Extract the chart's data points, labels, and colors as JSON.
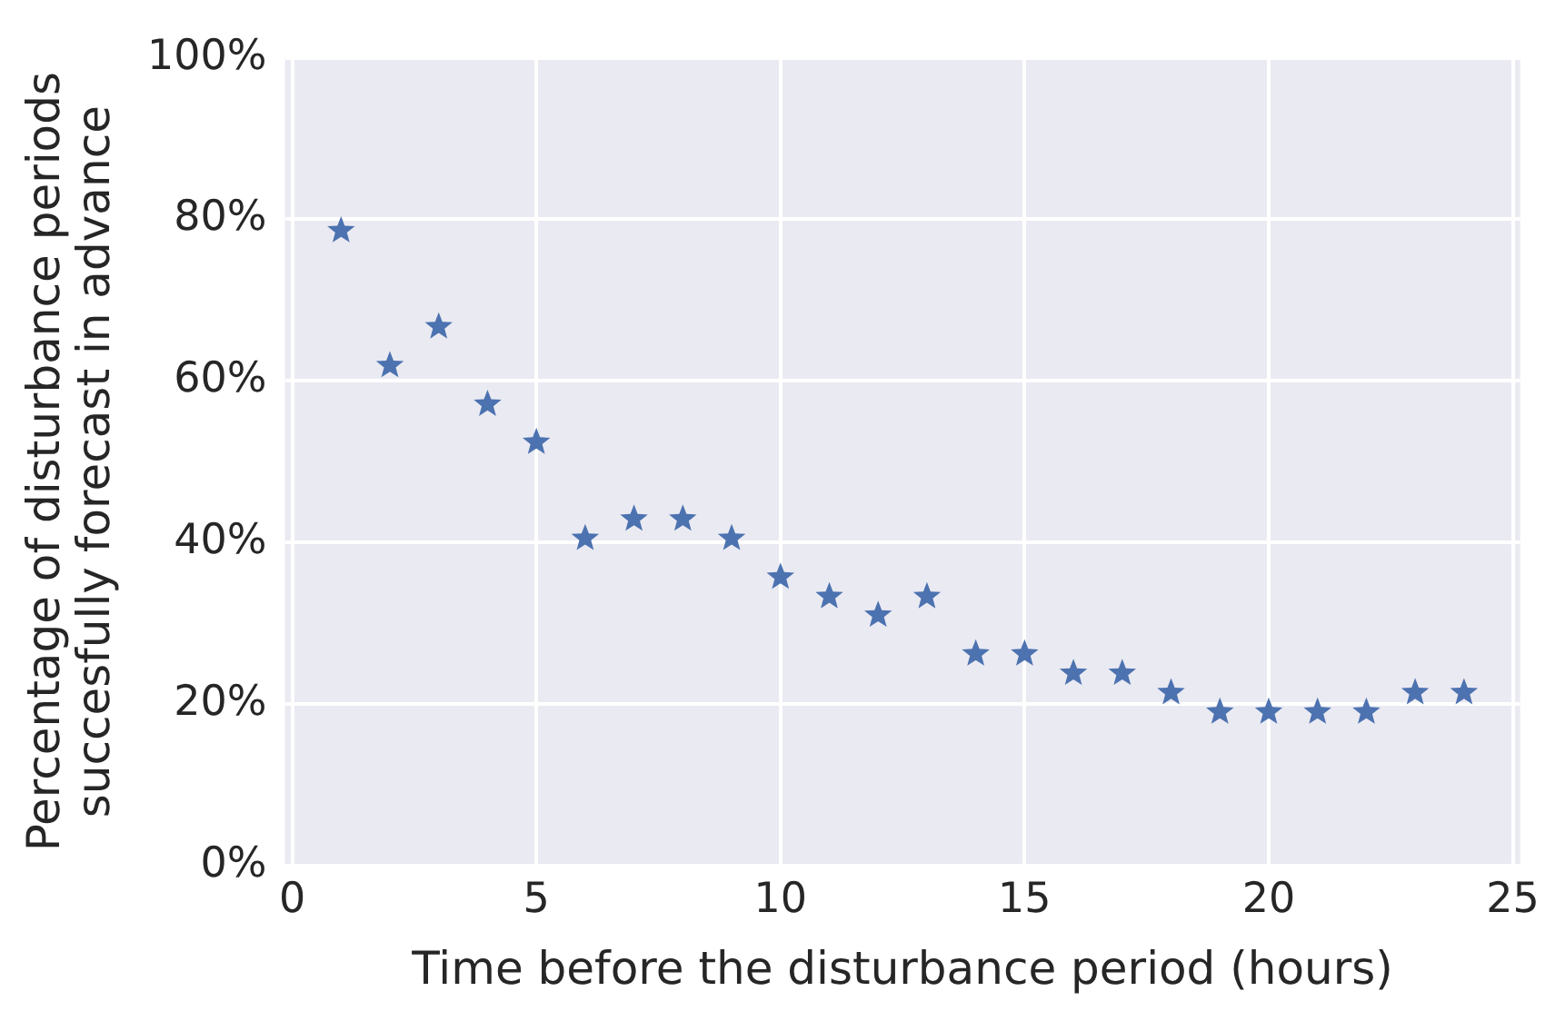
{
  "chart_data": {
    "type": "scatter",
    "xlabel": "Time before the disturbance period (hours)",
    "ylabel": "Percentage of disturbance periods\nsuccesfully forecast in advance",
    "x": [
      1,
      2,
      3,
      4,
      5,
      6,
      7,
      8,
      9,
      10,
      11,
      12,
      13,
      14,
      15,
      16,
      17,
      18,
      19,
      20,
      21,
      22,
      23,
      24
    ],
    "series": [
      {
        "color": "#4c72b0",
        "values": [
          78.6,
          61.9,
          66.7,
          57.1,
          52.4,
          40.5,
          42.9,
          42.9,
          40.5,
          35.7,
          33.3,
          31.0,
          33.3,
          26.2,
          26.2,
          23.8,
          23.8,
          21.4,
          19.0,
          19.0,
          19.0,
          19.0,
          21.4,
          21.4
        ]
      }
    ],
    "xlim": [
      -0.15,
      25.15
    ],
    "xticks": [
      0,
      5,
      10,
      15,
      20,
      25
    ],
    "ylim": [
      0,
      100
    ],
    "yticks": [
      {
        "value": 0,
        "label": "0%"
      },
      {
        "value": 20,
        "label": "20%"
      },
      {
        "value": 40,
        "label": "40%"
      },
      {
        "value": 60,
        "label": "60%"
      },
      {
        "value": 80,
        "label": "80%"
      },
      {
        "value": 100,
        "label": "100%"
      }
    ],
    "grid": true,
    "marker": "star"
  }
}
